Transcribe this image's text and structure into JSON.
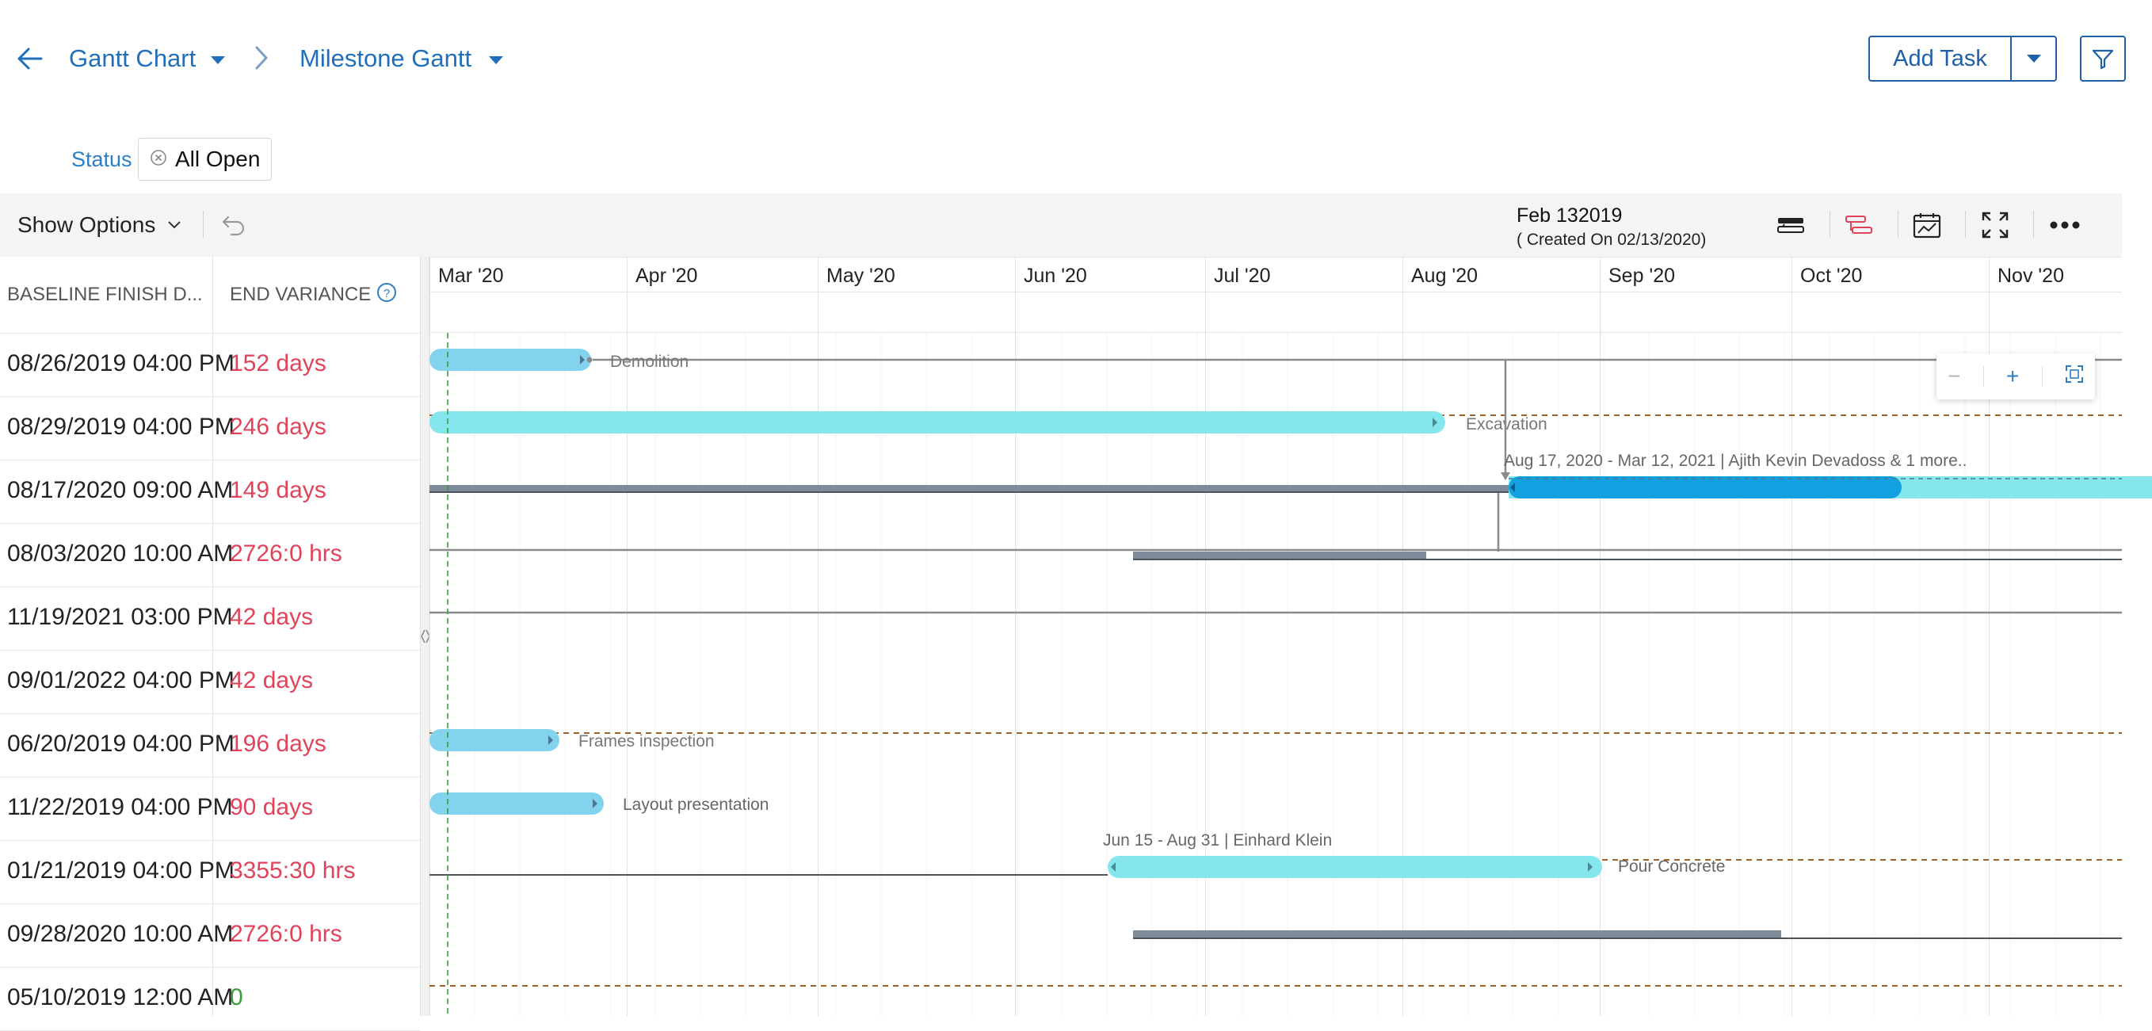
{
  "header": {
    "breadcrumb_1": "Gantt Chart",
    "breadcrumb_2": "Milestone Gantt",
    "add_task": "Add Task"
  },
  "filter": {
    "label": "Status",
    "chip": "All Open"
  },
  "toolbar": {
    "show_options": "Show Options",
    "baseline_title": "Feb 132019",
    "baseline_sub": "( Created On 02/13/2020)"
  },
  "columns": {
    "baseline_finish": "BASELINE FINISH D...",
    "end_variance": "END VARIANCE"
  },
  "rows": [
    {
      "baseline": "08/26/2019 04:00 PM",
      "variance": "152 days",
      "variance_color": "#e0435a"
    },
    {
      "baseline": "08/29/2019 04:00 PM",
      "variance": "246 days",
      "variance_color": "#e0435a"
    },
    {
      "baseline": "08/17/2020 09:00 AM",
      "variance": "149 days",
      "variance_color": "#e0435a"
    },
    {
      "baseline": "08/03/2020 10:00 AM",
      "variance": "2726:0 hrs",
      "variance_color": "#e0435a"
    },
    {
      "baseline": "11/19/2021 03:00 PM",
      "variance": "42 days",
      "variance_color": "#e0435a"
    },
    {
      "baseline": "09/01/2022 04:00 PM",
      "variance": "42 days",
      "variance_color": "#e0435a"
    },
    {
      "baseline": "06/20/2019 04:00 PM",
      "variance": "196 days",
      "variance_color": "#e0435a"
    },
    {
      "baseline": "11/22/2019 04:00 PM",
      "variance": "90 days",
      "variance_color": "#e0435a"
    },
    {
      "baseline": "01/21/2019 04:00 PM",
      "variance": "3355:30 hrs",
      "variance_color": "#e0435a"
    },
    {
      "baseline": "09/28/2020 10:00 AM",
      "variance": "2726:0 hrs",
      "variance_color": "#e0435a"
    },
    {
      "baseline": "05/10/2019 12:00 AM",
      "variance": "0",
      "variance_color": "#3a9d3a"
    }
  ],
  "timeline": {
    "months": [
      "Mar '20",
      "Apr '20",
      "May '20",
      "Jun '20",
      "Jul '20",
      "Aug '20",
      "Sep '20",
      "Oct '20",
      "Nov '20"
    ]
  },
  "tasks": {
    "demolition": "Demolition",
    "excavation": "Excavation",
    "row3_info": "Aug 17, 2020 - Mar 12, 2021 | Ajith Kevin Devadoss & 1 more..",
    "frames": "Frames inspection",
    "layout": "Layout presentation",
    "pour_info": "Jun 15 - Aug 31 | Einhard Klein",
    "pour": "Pour Concrete"
  },
  "colors": {
    "accent": "#1f6fbd",
    "bar_light": "#83d3ef",
    "bar_cyan": "#86e6ee",
    "bar_blue": "#12a0e0",
    "baseline_bar": "#7e8c99",
    "variance_red": "#e0435a",
    "variance_green": "#3a9d3a"
  },
  "icons": [
    "back-arrow-icon",
    "chevron-right-icon",
    "caret-down-icon",
    "filter-icon",
    "close-circle-icon",
    "undo-icon",
    "baseline-toggle-icon",
    "critical-path-icon",
    "calendar-chart-icon",
    "fullscreen-icon",
    "more-icon",
    "help-icon",
    "zoom-out-icon",
    "zoom-in-icon",
    "fit-to-screen-icon"
  ]
}
